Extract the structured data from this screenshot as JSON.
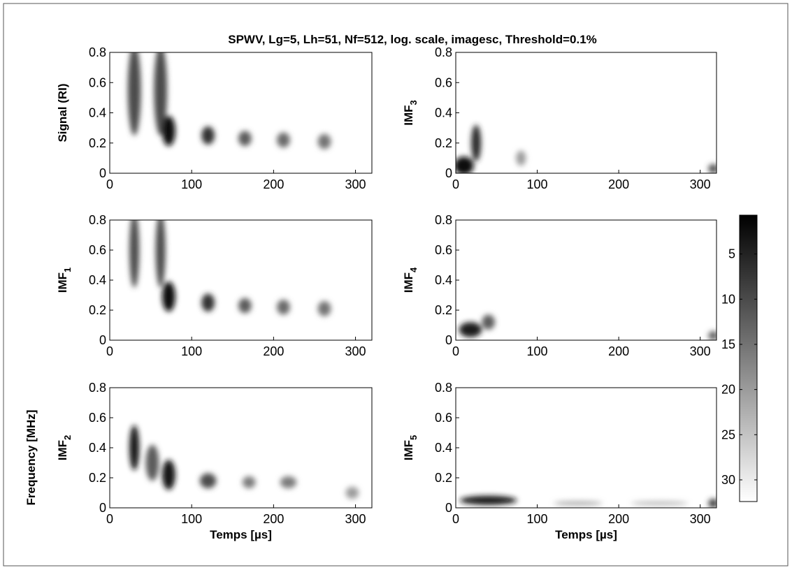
{
  "chart_data": {
    "type": "spectrogram",
    "title": "SPWV, Lg=5, Lh=51, Nf=512, log. scale, imagesc, Threshold=0.1%",
    "ylabel_common": "Frequency [MHz]",
    "xlabel": "Temps [µs]",
    "xlim": [
      0,
      320
    ],
    "xticks": [
      0,
      100,
      200,
      300
    ],
    "ylim": [
      0,
      0.8
    ],
    "yticks": [
      0,
      0.2,
      0.4,
      0.6,
      0.8
    ],
    "colorbar": {
      "clim": [
        0.7,
        32.4
      ],
      "ticks": [
        5,
        10,
        15,
        20,
        25,
        30
      ]
    },
    "panels": [
      {
        "ylabel": "Signal (RI)",
        "spots": [
          {
            "x": 30,
            "y": 0.55,
            "w": 8,
            "h": 0.3,
            "level": 10
          },
          {
            "x": 62,
            "y": 0.55,
            "w": 8,
            "h": 0.3,
            "level": 10
          },
          {
            "x": 72,
            "y": 0.28,
            "w": 8,
            "h": 0.1,
            "level": 2
          },
          {
            "x": 120,
            "y": 0.25,
            "w": 8,
            "h": 0.06,
            "level": 7
          },
          {
            "x": 165,
            "y": 0.23,
            "w": 8,
            "h": 0.05,
            "level": 12
          },
          {
            "x": 212,
            "y": 0.22,
            "w": 8,
            "h": 0.05,
            "level": 14
          },
          {
            "x": 262,
            "y": 0.21,
            "w": 8,
            "h": 0.05,
            "level": 15
          }
        ]
      },
      {
        "ylabel": "IMF",
        "sub": "3",
        "spots": [
          {
            "x": 10,
            "y": 0.05,
            "w": 12,
            "h": 0.06,
            "level": 2
          },
          {
            "x": 25,
            "y": 0.2,
            "w": 6,
            "h": 0.12,
            "level": 6
          },
          {
            "x": 80,
            "y": 0.1,
            "w": 6,
            "h": 0.05,
            "level": 20
          },
          {
            "x": 316,
            "y": 0.03,
            "w": 6,
            "h": 0.03,
            "level": 10
          }
        ]
      },
      {
        "ylabel": "IMF",
        "sub": "1",
        "spots": [
          {
            "x": 30,
            "y": 0.6,
            "w": 6,
            "h": 0.25,
            "level": 10
          },
          {
            "x": 62,
            "y": 0.6,
            "w": 6,
            "h": 0.25,
            "level": 10
          },
          {
            "x": 72,
            "y": 0.29,
            "w": 8,
            "h": 0.1,
            "level": 2
          },
          {
            "x": 120,
            "y": 0.25,
            "w": 8,
            "h": 0.06,
            "level": 7
          },
          {
            "x": 165,
            "y": 0.23,
            "w": 8,
            "h": 0.05,
            "level": 12
          },
          {
            "x": 212,
            "y": 0.22,
            "w": 8,
            "h": 0.05,
            "level": 14
          },
          {
            "x": 262,
            "y": 0.21,
            "w": 8,
            "h": 0.05,
            "level": 15
          }
        ]
      },
      {
        "ylabel": "IMF",
        "sub": "4",
        "spots": [
          {
            "x": 18,
            "y": 0.07,
            "w": 14,
            "h": 0.05,
            "level": 4
          },
          {
            "x": 40,
            "y": 0.12,
            "w": 8,
            "h": 0.05,
            "level": 12
          },
          {
            "x": 316,
            "y": 0.03,
            "w": 6,
            "h": 0.03,
            "level": 12
          }
        ]
      },
      {
        "ylabel": "IMF",
        "sub": "2",
        "spots": [
          {
            "x": 30,
            "y": 0.4,
            "w": 6,
            "h": 0.15,
            "level": 3
          },
          {
            "x": 52,
            "y": 0.3,
            "w": 8,
            "h": 0.12,
            "level": 12
          },
          {
            "x": 72,
            "y": 0.22,
            "w": 8,
            "h": 0.1,
            "level": 3
          },
          {
            "x": 120,
            "y": 0.18,
            "w": 10,
            "h": 0.05,
            "level": 10
          },
          {
            "x": 170,
            "y": 0.17,
            "w": 8,
            "h": 0.04,
            "level": 16
          },
          {
            "x": 218,
            "y": 0.17,
            "w": 10,
            "h": 0.04,
            "level": 16
          },
          {
            "x": 296,
            "y": 0.1,
            "w": 8,
            "h": 0.04,
            "level": 20
          }
        ]
      },
      {
        "ylabel": "IMF",
        "sub": "5",
        "spots": [
          {
            "x": 40,
            "y": 0.05,
            "w": 35,
            "h": 0.03,
            "level": 3
          },
          {
            "x": 150,
            "y": 0.03,
            "w": 30,
            "h": 0.015,
            "level": 22
          },
          {
            "x": 250,
            "y": 0.03,
            "w": 35,
            "h": 0.015,
            "level": 24
          },
          {
            "x": 316,
            "y": 0.03,
            "w": 6,
            "h": 0.03,
            "level": 8
          }
        ]
      }
    ]
  }
}
